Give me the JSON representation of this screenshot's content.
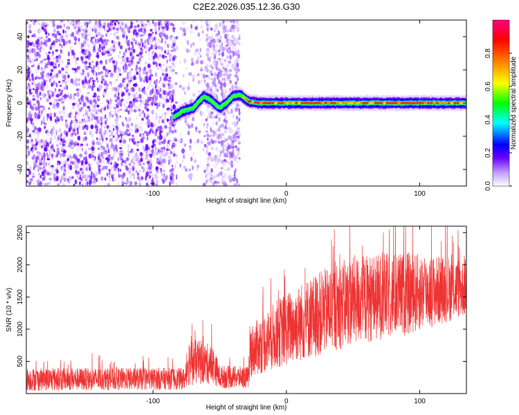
{
  "title": "C2E2.2026.035.12.36.G30",
  "chart_data": [
    {
      "type": "heatmap",
      "name": "spectrogram",
      "xlabel": "Height of straight line (km)",
      "ylabel": "Frequency (Hz)",
      "xlim": [
        -195,
        135
      ],
      "ylim": [
        -50,
        50
      ],
      "xticks": [
        -100,
        0,
        100
      ],
      "xtick_labels": [
        "-100",
        "0",
        "100"
      ],
      "yticks": [
        -40,
        -20,
        0,
        20,
        40
      ],
      "ytick_labels": [
        "-40",
        "-20",
        "0",
        "20",
        "40"
      ],
      "noise_regions": [
        {
          "x_range": [
            -195,
            -82
          ],
          "density": "high"
        },
        {
          "x_range": [
            -80,
            -60
          ],
          "density": "low"
        },
        {
          "x_range": [
            -60,
            -35
          ],
          "density": "medium"
        }
      ],
      "signal_track": [
        {
          "x": -84,
          "y": -8
        },
        {
          "x": -78,
          "y": -5
        },
        {
          "x": -70,
          "y": -3
        },
        {
          "x": -62,
          "y": 4
        },
        {
          "x": -57,
          "y": 2
        },
        {
          "x": -50,
          "y": -3
        },
        {
          "x": -45,
          "y": 0
        },
        {
          "x": -40,
          "y": 4
        },
        {
          "x": -35,
          "y": 5
        },
        {
          "x": -28,
          "y": 1
        },
        {
          "x": -20,
          "y": 0
        },
        {
          "x": 135,
          "y": 0
        }
      ],
      "signal_halfwidth_hz": 2.5,
      "colorbar": {
        "label": "Normalized spectral amplitude",
        "range": [
          0,
          1
        ],
        "ticks": [
          0.0,
          0.2,
          0.4,
          0.6,
          0.8
        ],
        "tick_labels": [
          "0.0",
          "0.2",
          "0.4",
          "0.6",
          "0.8"
        ],
        "colors": [
          "#ffffff",
          "#6a00ff",
          "#0000ff",
          "#00ffff",
          "#00ff00",
          "#ffff00",
          "#ff8000",
          "#ff0000",
          "#ff0080"
        ]
      }
    },
    {
      "type": "line",
      "name": "snr",
      "xlabel": "Height of straight line (km)",
      "ylabel": "SNR (10 * v/v)",
      "xlim": [
        -195,
        135
      ],
      "ylim": [
        0,
        2600
      ],
      "xticks": [
        -100,
        0,
        100
      ],
      "xtick_labels": [
        "-100",
        "0",
        "100"
      ],
      "yticks": [
        500,
        1000,
        1500,
        2000,
        2500
      ],
      "ytick_labels": [
        "500",
        "1000",
        "1500",
        "2000",
        "2500"
      ],
      "color": "#ee3333",
      "envelope": [
        {
          "x": -195,
          "mean": 220,
          "spread": 180
        },
        {
          "x": -75,
          "mean": 230,
          "spread": 170
        },
        {
          "x": -74,
          "mean": 500,
          "spread": 380
        },
        {
          "x": -55,
          "mean": 450,
          "spread": 300
        },
        {
          "x": -50,
          "mean": 260,
          "spread": 180
        },
        {
          "x": -28,
          "mean": 250,
          "spread": 170
        },
        {
          "x": -27,
          "mean": 650,
          "spread": 400
        },
        {
          "x": -5,
          "mean": 950,
          "spread": 550
        },
        {
          "x": 20,
          "mean": 1200,
          "spread": 650
        },
        {
          "x": 50,
          "mean": 1450,
          "spread": 700
        },
        {
          "x": 90,
          "mean": 1550,
          "spread": 650
        },
        {
          "x": 135,
          "mean": 1650,
          "spread": 450
        }
      ],
      "peaks": [
        {
          "x": 57,
          "y": 2300
        },
        {
          "x": 88,
          "y": 2600
        },
        {
          "x": 129,
          "y": 2300
        }
      ]
    }
  ]
}
